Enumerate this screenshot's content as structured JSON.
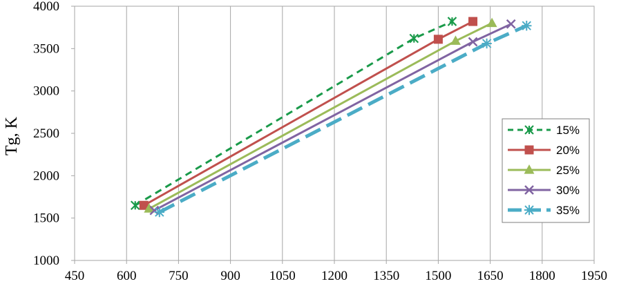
{
  "chart_data": {
    "type": "line",
    "title": "",
    "xlabel": "",
    "ylabel": "Tg, K",
    "xlim": [
      450,
      1950
    ],
    "ylim": [
      1000,
      4000
    ],
    "xticks": [
      "450",
      "600",
      "750",
      "900",
      "1050",
      "1200",
      "1350",
      "1500",
      "1650",
      "1800",
      "1950"
    ],
    "yticks": [
      "1000",
      "1500",
      "2000",
      "2500",
      "3000",
      "3500",
      "4000"
    ],
    "grid": "vertical",
    "legend_position": "right",
    "series": [
      {
        "name": "15%",
        "color": "#1a9a4a",
        "style": "dashed",
        "marker": "star",
        "x": [
          625,
          1430,
          1540
        ],
        "y": [
          1650,
          3620,
          3820
        ]
      },
      {
        "name": "20%",
        "color": "#c0504d",
        "style": "solid",
        "marker": "square",
        "x": [
          650,
          1500,
          1600
        ],
        "y": [
          1650,
          3610,
          3820
        ]
      },
      {
        "name": "25%",
        "color": "#9bbb59",
        "style": "solid",
        "marker": "triangle",
        "x": [
          665,
          1550,
          1655
        ],
        "y": [
          1610,
          3590,
          3800
        ]
      },
      {
        "name": "30%",
        "color": "#8064a2",
        "style": "solid",
        "marker": "x",
        "x": [
          680,
          1600,
          1710
        ],
        "y": [
          1590,
          3580,
          3790
        ]
      },
      {
        "name": "35%",
        "color": "#4bacc6",
        "style": "long-dash",
        "marker": "asterisk",
        "x": [
          695,
          1640,
          1755
        ],
        "y": [
          1570,
          3560,
          3770
        ]
      }
    ]
  }
}
